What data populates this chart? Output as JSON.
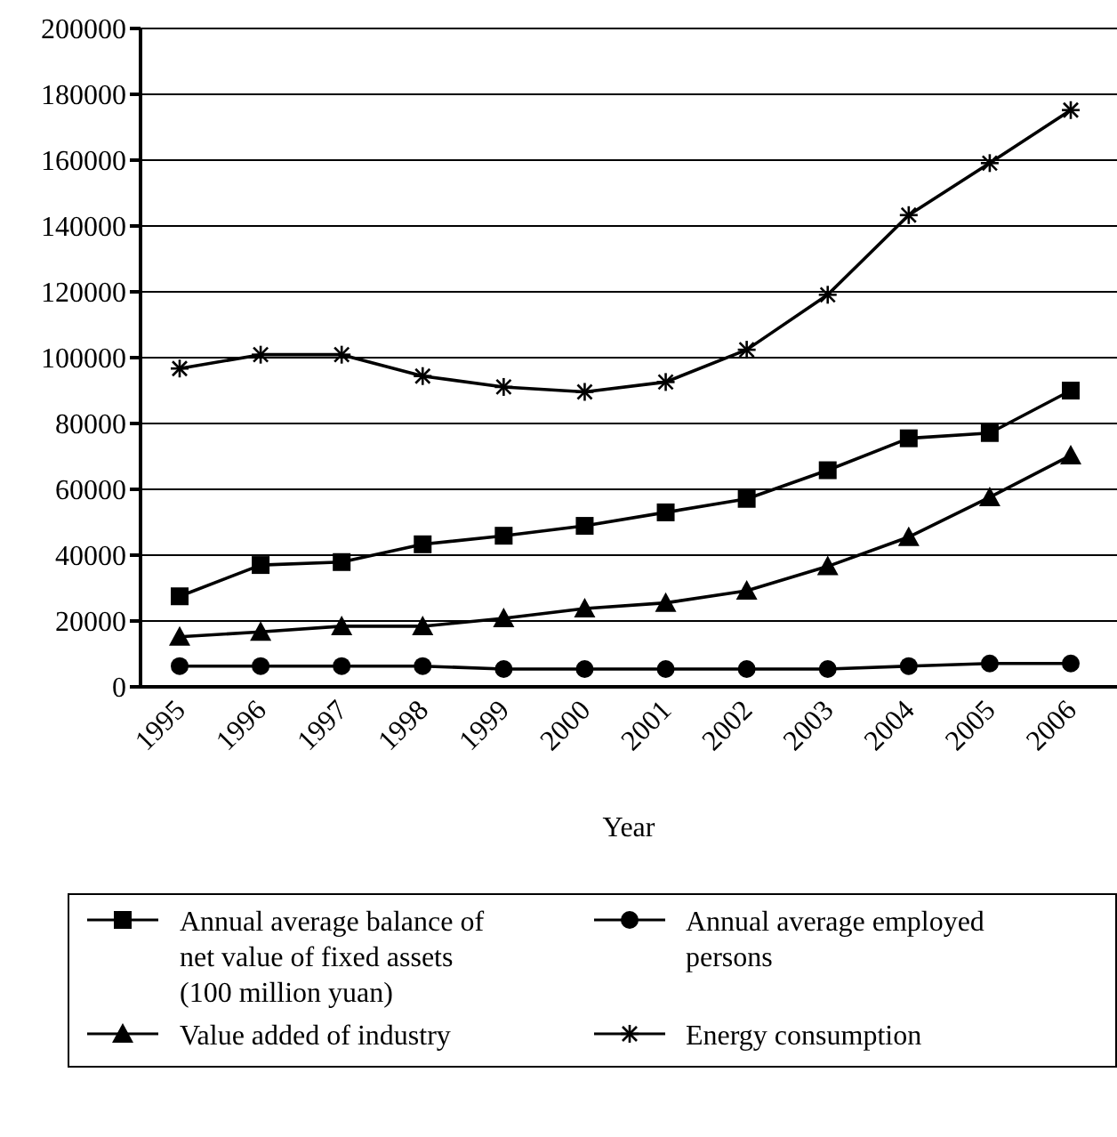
{
  "chart_data": {
    "type": "line",
    "xlabel": "Year",
    "categories": [
      "1995",
      "1996",
      "1997",
      "1998",
      "1999",
      "2000",
      "2001",
      "2002",
      "2003",
      "2004",
      "2005",
      "2006"
    ],
    "series": [
      {
        "name": "Annual average balance of net value of fixed assets (100 million yuan)",
        "color": "#000000",
        "marker": "square",
        "values": [
          27500,
          37000,
          37900,
          43300,
          45900,
          48900,
          53000,
          57100,
          65800,
          75500,
          77100,
          90000
        ]
      },
      {
        "name": "Value added of industry",
        "color": "#000000",
        "marker": "triangle",
        "values": [
          15200,
          16700,
          18400,
          18400,
          20800,
          23800,
          25500,
          29200,
          36600,
          45500,
          57600,
          70300
        ]
      },
      {
        "name": "Annual average employed persons",
        "color": "#000000",
        "marker": "circle",
        "values": [
          6300,
          6300,
          6300,
          6300,
          5400,
          5400,
          5400,
          5400,
          5400,
          6300,
          7100,
          7100
        ]
      },
      {
        "name": "Energy consumption",
        "color": "#000000",
        "marker": "cross",
        "values": [
          96700,
          100900,
          100900,
          94400,
          91100,
          89600,
          92600,
          102400,
          119100,
          143300,
          159100,
          175200
        ]
      }
    ],
    "ylim": [
      0,
      200000
    ],
    "yticks": [
      0,
      20000,
      40000,
      60000,
      80000,
      100000,
      120000,
      140000,
      160000,
      180000,
      200000
    ],
    "grid": "y",
    "legend": "bottom",
    "line_style": "solid"
  }
}
